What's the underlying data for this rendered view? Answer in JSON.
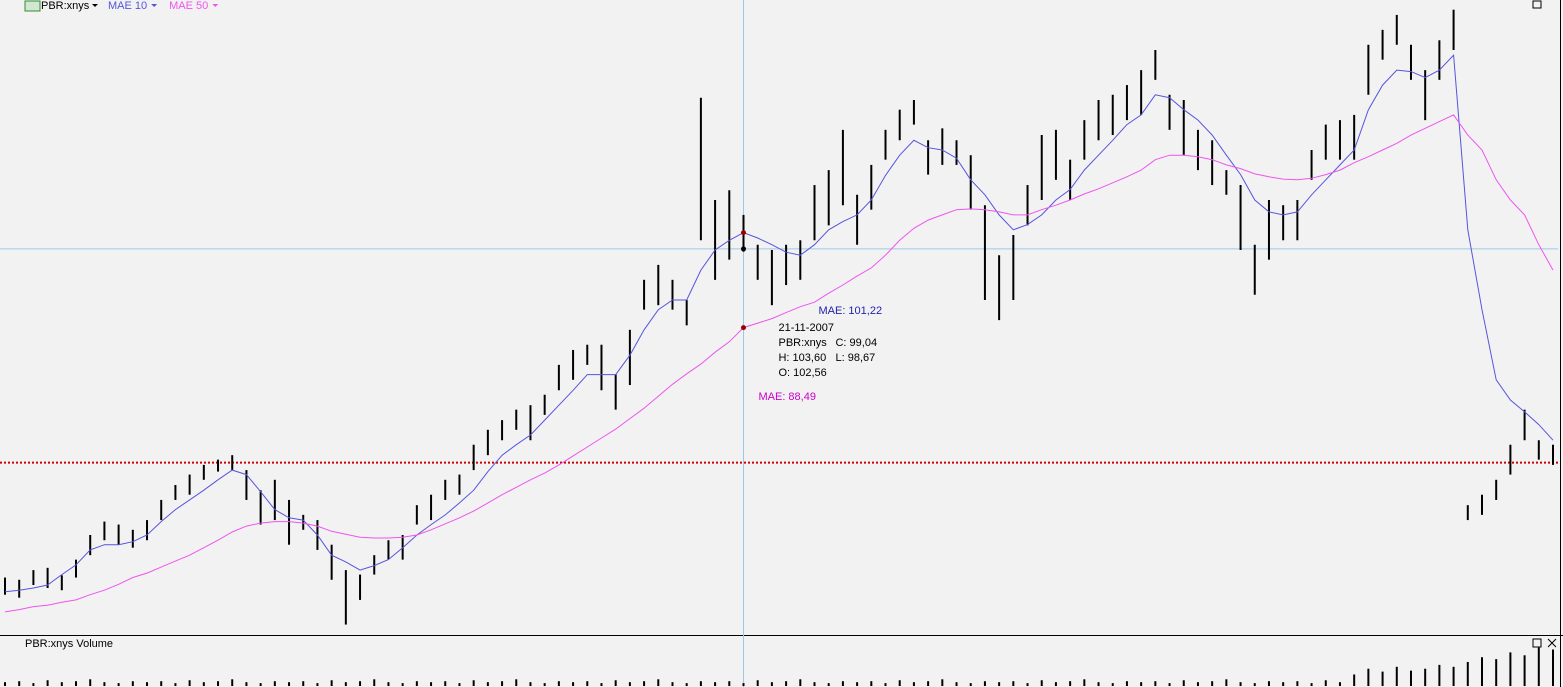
{
  "chart_data": {
    "type": "ohlc",
    "price_series": {
      "name": "PBR:xnys",
      "color": "#000000",
      "high": [
        55.0,
        54.7,
        56.0,
        56.3,
        55.3,
        57.4,
        60.7,
        62.5,
        62.1,
        61.4,
        62.7,
        65.4,
        67.4,
        68.8,
        70.1,
        70.8,
        71.4,
        69.4,
        66.7,
        68.1,
        65.4,
        63.4,
        62.7,
        59.4,
        56.0,
        55.4,
        58.0,
        60.0,
        60.7,
        64.7,
        66.1,
        68.1,
        68.8,
        72.8,
        74.8,
        76.1,
        77.5,
        78.1,
        79.5,
        83.5,
        85.5,
        86.2,
        86.2,
        82.2,
        88.2,
        94.9,
        96.9,
        94.9,
        92.2,
        119.3,
        105.6,
        106.9,
        103.6,
        99.6,
        98.9,
        99.6,
        100.2,
        107.6,
        109.6,
        115.0,
        106.3,
        110.3,
        115.0,
        117.7,
        119.0,
        113.6,
        115.2,
        113.6,
        111.6,
        104.9,
        98.2,
        100.9,
        107.6,
        114.3,
        115.0,
        111.0,
        116.3,
        119.0,
        119.7,
        121.0,
        123.0,
        125.7,
        119.7,
        119.0,
        115.0,
        113.6,
        109.6,
        107.6,
        99.6,
        105.6,
        104.9,
        105.6,
        112.3,
        115.7,
        116.3,
        117.0,
        126.4,
        128.4,
        130.4,
        126.4,
        123.0,
        127.0,
        131.1,
        64.7,
        66.1,
        68.1,
        72.8,
        77.5,
        73.4,
        72.8
      ],
      "low": [
        52.7,
        52.3,
        54.0,
        53.6,
        53.3,
        55.0,
        58.0,
        60.0,
        59.4,
        59.0,
        60.0,
        62.7,
        65.4,
        66.1,
        68.1,
        69.2,
        69.4,
        65.4,
        62.1,
        62.7,
        59.4,
        61.4,
        58.7,
        54.7,
        48.7,
        52.0,
        55.4,
        57.4,
        57.4,
        62.1,
        62.7,
        65.4,
        66.1,
        69.4,
        71.4,
        73.4,
        74.8,
        73.4,
        76.8,
        80.1,
        81.5,
        83.5,
        80.1,
        77.5,
        80.8,
        90.9,
        91.5,
        90.9,
        88.8,
        100.2,
        94.9,
        97.6,
        98.67,
        94.9,
        91.5,
        94.2,
        94.9,
        100.2,
        102.2,
        104.9,
        99.6,
        104.3,
        111.0,
        113.6,
        115.7,
        109.0,
        110.3,
        110.3,
        104.3,
        92.2,
        89.5,
        92.2,
        102.2,
        105.6,
        108.3,
        105.6,
        111.0,
        113.6,
        114.3,
        116.3,
        117.0,
        121.7,
        115.0,
        111.6,
        109.6,
        107.6,
        106.3,
        98.9,
        92.9,
        97.6,
        100.2,
        100.2,
        108.3,
        111.0,
        111.0,
        111.0,
        119.7,
        124.4,
        126.4,
        121.7,
        116.3,
        121.7,
        125.7,
        62.7,
        63.4,
        65.4,
        68.8,
        73.4,
        70.8,
        70.1
      ]
    },
    "series": [
      {
        "name": "MAE 10",
        "color": "#5555dd",
        "values": [
          53.1,
          53.3,
          53.6,
          54.0,
          55.4,
          56.7,
          58.7,
          59.4,
          59.4,
          59.8,
          60.7,
          62.5,
          64.1,
          65.4,
          66.7,
          68.1,
          69.4,
          68.8,
          66.5,
          64.1,
          63.0,
          62.7,
          60.7,
          58.0,
          57.1,
          56.0,
          56.6,
          57.4,
          59.0,
          60.7,
          62.1,
          63.4,
          65.0,
          66.7,
          69.2,
          71.4,
          72.8,
          74.1,
          76.1,
          78.1,
          80.1,
          82.2,
          82.2,
          82.2,
          84.8,
          88.2,
          90.9,
          92.2,
          92.2,
          96.2,
          98.9,
          100.2,
          101.22,
          100.5,
          99.6,
          98.6,
          98.2,
          99.6,
          101.6,
          102.7,
          103.6,
          105.6,
          108.9,
          111.6,
          113.6,
          112.6,
          112.3,
          111.2,
          108.3,
          106.3,
          103.6,
          101.6,
          102.3,
          103.6,
          105.6,
          107.0,
          109.6,
          111.6,
          113.6,
          115.7,
          117.0,
          119.7,
          119.3,
          117.7,
          116.3,
          114.3,
          111.6,
          109.0,
          105.6,
          104.0,
          103.6,
          104.0,
          106.3,
          108.3,
          110.3,
          112.3,
          117.7,
          121.0,
          123.0,
          122.8,
          122.0,
          123.0,
          125.0,
          101.6,
          90.9,
          81.5,
          78.8,
          77.2,
          75.5,
          73.4
        ]
      },
      {
        "name": "MAE 50",
        "color": "#ee55ee",
        "values": [
          50.4,
          50.7,
          51.1,
          51.3,
          51.7,
          52.0,
          52.7,
          53.3,
          54.1,
          55.0,
          55.6,
          56.4,
          57.2,
          58.0,
          59.0,
          60.0,
          61.1,
          61.9,
          62.3,
          62.5,
          62.5,
          62.3,
          61.9,
          61.2,
          60.8,
          60.4,
          60.3,
          60.3,
          60.4,
          60.7,
          61.4,
          62.2,
          63.0,
          63.9,
          65.0,
          66.1,
          67.1,
          68.1,
          69.0,
          70.1,
          71.3,
          72.5,
          73.7,
          74.9,
          76.3,
          77.7,
          79.3,
          80.9,
          82.3,
          83.6,
          85.2,
          86.6,
          88.49,
          89.1,
          89.7,
          90.5,
          91.3,
          91.9,
          93.1,
          94.2,
          95.4,
          96.5,
          98.2,
          100.2,
          101.8,
          102.9,
          103.6,
          104.3,
          104.4,
          104.3,
          104.0,
          103.6,
          103.6,
          104.3,
          104.9,
          105.6,
          106.4,
          107.1,
          107.9,
          108.7,
          109.6,
          111.0,
          111.6,
          111.6,
          111.4,
          111.0,
          110.3,
          109.8,
          109.1,
          108.7,
          108.4,
          108.3,
          108.5,
          109.0,
          109.6,
          110.6,
          111.4,
          112.3,
          113.2,
          114.3,
          115.2,
          116.1,
          117.0,
          114.3,
          112.3,
          108.3,
          105.6,
          103.6,
          99.6,
          96.2
        ]
      }
    ],
    "ylim": [
      47.3,
      132.4
    ],
    "reference_line": {
      "value": 70.4,
      "color": "#cc0000"
    },
    "tooltip": {
      "mae10": {
        "value": 101.22,
        "label": "MAE: 101,22"
      },
      "date": "21-11-2007",
      "symbol": "PBR:xnys",
      "close": {
        "value": 99.04,
        "label": "C: 99,04"
      },
      "high": {
        "value": 103.6,
        "label": "H: 103,60"
      },
      "low": {
        "value": 98.67,
        "label": "L: 98,67"
      },
      "open": {
        "value": 102.56,
        "label": "O: 102,56"
      },
      "mae50": {
        "value": 88.49,
        "label": "MAE: 88,49"
      }
    },
    "volume": {
      "title": "PBR:xnys Volume",
      "ylim": [
        0,
        50
      ],
      "values": [
        4,
        5,
        3,
        6,
        4,
        5,
        7,
        4,
        3,
        5,
        4,
        5,
        3,
        6,
        4,
        5,
        7,
        4,
        3,
        5,
        4,
        5,
        3,
        6,
        4,
        5,
        7,
        4,
        3,
        5,
        4,
        5,
        3,
        6,
        4,
        5,
        7,
        4,
        3,
        5,
        4,
        5,
        3,
        6,
        4,
        5,
        7,
        4,
        3,
        5,
        4,
        5,
        3,
        6,
        4,
        5,
        7,
        4,
        3,
        5,
        4,
        5,
        3,
        6,
        4,
        5,
        7,
        4,
        3,
        5,
        4,
        5,
        3,
        6,
        4,
        5,
        7,
        4,
        3,
        5,
        4,
        5,
        3,
        6,
        4,
        5,
        7,
        4,
        3,
        5,
        4,
        5,
        3,
        6,
        4,
        12,
        18,
        15,
        20,
        16,
        18,
        22,
        20,
        25,
        30,
        28,
        35,
        32,
        40,
        38
      ]
    }
  }
}
